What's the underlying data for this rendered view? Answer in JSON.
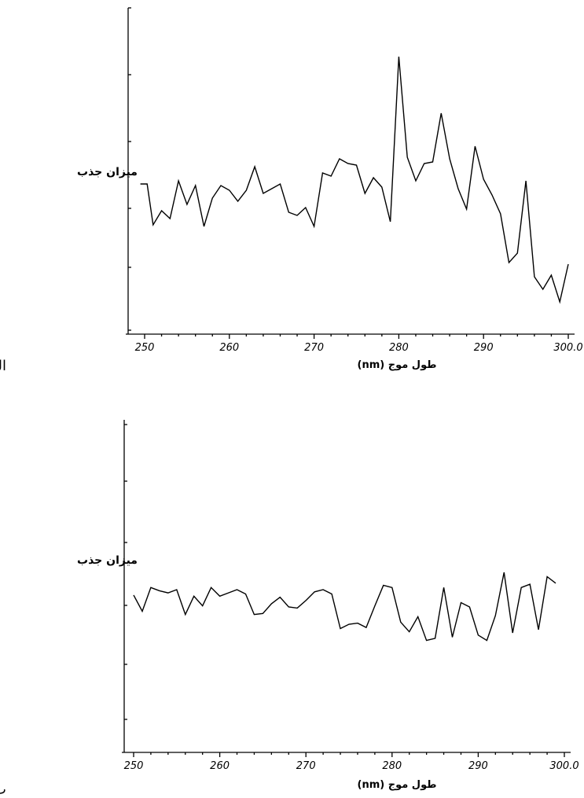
{
  "chart_data": [
    {
      "type": "line",
      "panel_label": "الف",
      "ylabel": "میزان جذب",
      "xlabel": "طول موج (nm)",
      "xticks": [
        "250",
        "260",
        "270",
        "280",
        "290",
        "300.0"
      ],
      "xlim": [
        249,
        300
      ],
      "ylim": [
        0,
        1
      ],
      "y_scale_labeled": false,
      "series": [
        {
          "x": [
            249.5,
            250.3,
            251,
            252,
            253,
            254,
            255,
            256,
            257,
            258,
            259,
            260,
            261,
            262,
            263,
            264,
            265,
            266,
            267,
            268,
            269,
            270,
            271,
            272,
            273,
            274,
            275,
            276,
            277,
            278,
            279,
            280,
            281,
            282,
            283,
            284,
            285,
            286,
            287,
            288,
            289,
            290,
            291,
            292,
            293,
            294,
            295,
            296,
            297,
            298,
            299,
            300
          ],
          "y": [
            0.565,
            0.565,
            0.435,
            0.48,
            0.455,
            0.575,
            0.5,
            0.56,
            0.43,
            0.52,
            0.56,
            0.545,
            0.51,
            0.545,
            0.62,
            0.535,
            0.55,
            0.565,
            0.475,
            0.465,
            0.49,
            0.43,
            0.6,
            0.59,
            0.645,
            0.63,
            0.625,
            0.535,
            0.585,
            0.555,
            0.445,
            0.97,
            0.65,
            0.575,
            0.63,
            0.635,
            0.79,
            0.645,
            0.55,
            0.485,
            0.685,
            0.58,
            0.53,
            0.47,
            0.315,
            0.345,
            0.575,
            0.27,
            0.23,
            0.275,
            0.19,
            0.31
          ]
        }
      ]
    },
    {
      "type": "line",
      "panel_label": "ب",
      "ylabel": "میزان جذب",
      "xlabel": "طول موج (nm)",
      "xticks": [
        "250",
        "260",
        "270",
        "280",
        "290",
        "300.0"
      ],
      "xlim": [
        249,
        301
      ],
      "ylim": [
        0,
        1
      ],
      "y_scale_labeled": false,
      "series": [
        {
          "x": [
            250,
            251,
            252,
            253,
            254,
            255,
            256,
            257,
            258,
            259,
            260,
            261,
            262,
            263,
            264,
            265,
            266,
            267,
            268,
            269,
            270,
            271,
            272,
            273,
            274,
            275,
            276,
            277,
            278,
            279,
            280,
            281,
            282,
            283,
            284,
            285,
            286,
            287,
            288,
            289,
            290,
            291,
            292,
            293,
            294,
            295,
            296,
            297,
            298,
            299
          ],
          "y": [
            0.575,
            0.5,
            0.61,
            0.595,
            0.585,
            0.6,
            0.485,
            0.57,
            0.525,
            0.61,
            0.57,
            0.585,
            0.6,
            0.58,
            0.485,
            0.49,
            0.535,
            0.565,
            0.52,
            0.515,
            0.55,
            0.59,
            0.6,
            0.58,
            0.42,
            0.44,
            0.445,
            0.425,
            0.525,
            0.62,
            0.61,
            0.45,
            0.405,
            0.475,
            0.365,
            0.375,
            0.61,
            0.38,
            0.54,
            0.52,
            0.39,
            0.365,
            0.48,
            0.68,
            0.4,
            0.61,
            0.625,
            0.415,
            0.66,
            0.63
          ]
        }
      ]
    }
  ]
}
